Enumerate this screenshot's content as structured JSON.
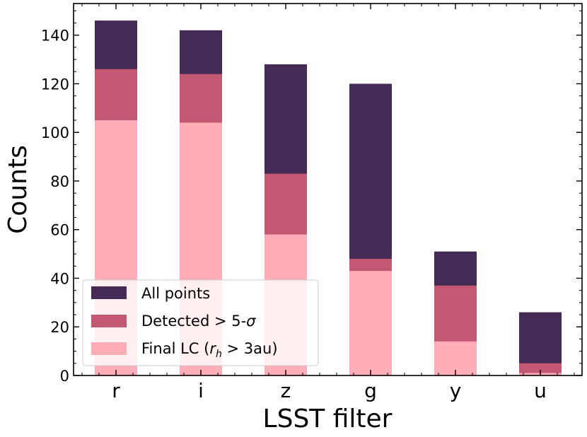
{
  "chart_data": {
    "type": "bar",
    "stacked": "overlay",
    "categories": [
      "r",
      "i",
      "z",
      "g",
      "y",
      "u"
    ],
    "series": [
      {
        "name": "All points",
        "color": "#452a55",
        "values": [
          146,
          142,
          128,
          120,
          51,
          26
        ]
      },
      {
        "name": "Detected > 5-σ",
        "color": "#c25872",
        "values": [
          126,
          124,
          83,
          48,
          37,
          5
        ]
      },
      {
        "name": "Final LC (r_h > 3au)",
        "color": "#ffadb9",
        "values": [
          105,
          104,
          58,
          43,
          14,
          1
        ]
      }
    ],
    "legend": {
      "position": "lower-left",
      "entries": [
        {
          "prefix": "All points",
          "italic": "",
          "sub": "",
          "suffix": ""
        },
        {
          "prefix": "Detected > 5-",
          "italic": "σ",
          "sub": "",
          "suffix": ""
        },
        {
          "prefix": "Final LC (",
          "italic": "r",
          "sub": "h",
          "suffix": " > 3au)"
        }
      ]
    },
    "xlabel": "LSST filter",
    "ylabel": "Counts",
    "ylim": [
      0,
      153
    ],
    "yticks": [
      0,
      20,
      40,
      60,
      80,
      100,
      120,
      140
    ],
    "grid": false
  }
}
